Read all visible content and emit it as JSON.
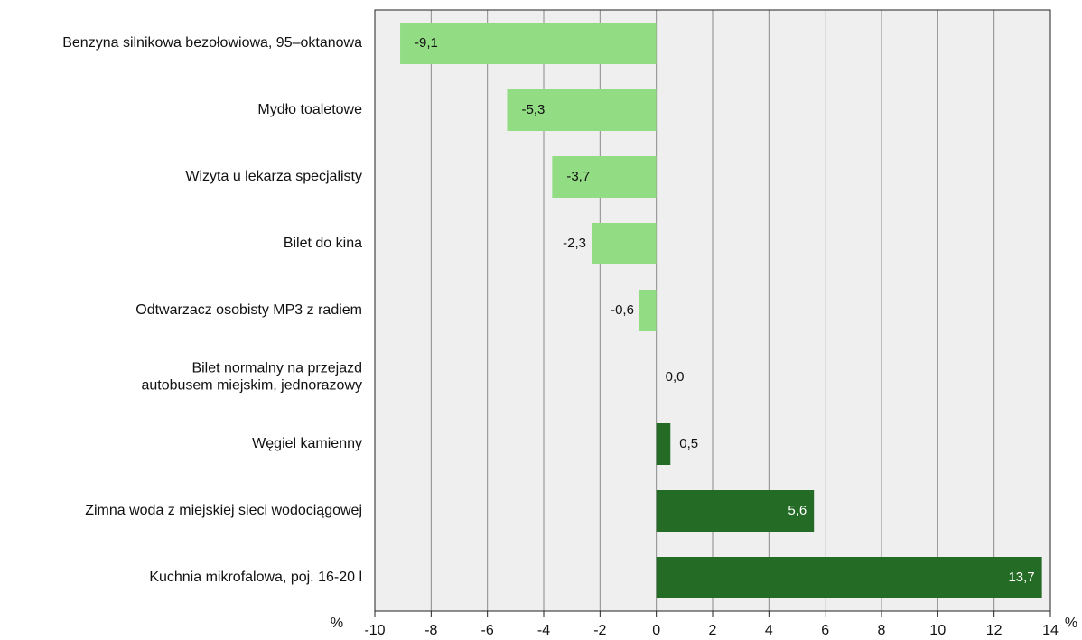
{
  "chart_data": {
    "type": "bar",
    "orientation": "horizontal",
    "categories": [
      [
        "Benzyna silnikowa bezołowiowa, 95–oktanowa"
      ],
      [
        "Mydło toaletowe"
      ],
      [
        "Wizyta u lekarza specjalisty"
      ],
      [
        "Bilet do kina"
      ],
      [
        "Odtwarzacz osobisty MP3 z radiem"
      ],
      [
        "Bilet normalny na przejazd",
        "autobusem miejskim, jednorazowy"
      ],
      [
        "Węgiel kamienny"
      ],
      [
        "Zimna woda z miejskiej sieci wodociągowej"
      ],
      [
        "Kuchnia mikrofalowa, poj. 16-20 l"
      ]
    ],
    "values": [
      -9.1,
      -5.3,
      -3.7,
      -2.3,
      -0.6,
      0.0,
      0.5,
      5.6,
      13.7
    ],
    "value_labels": [
      "-9,1",
      "-5,3",
      "-3,7",
      "-2,3",
      "-0,6",
      "0,0",
      "0,5",
      "5,6",
      "13,7"
    ],
    "xlim": [
      -10,
      14
    ],
    "xticks": [
      -10,
      -8,
      -6,
      -4,
      -2,
      0,
      2,
      4,
      6,
      8,
      10,
      12,
      14
    ],
    "unit_left": "%",
    "unit_right": "%",
    "grid": true,
    "colors": {
      "negative": "#92dc84",
      "positive": "#246b25",
      "plot_background": "#efefef",
      "gridline": "#8a8a8a",
      "border": "#222222"
    }
  }
}
